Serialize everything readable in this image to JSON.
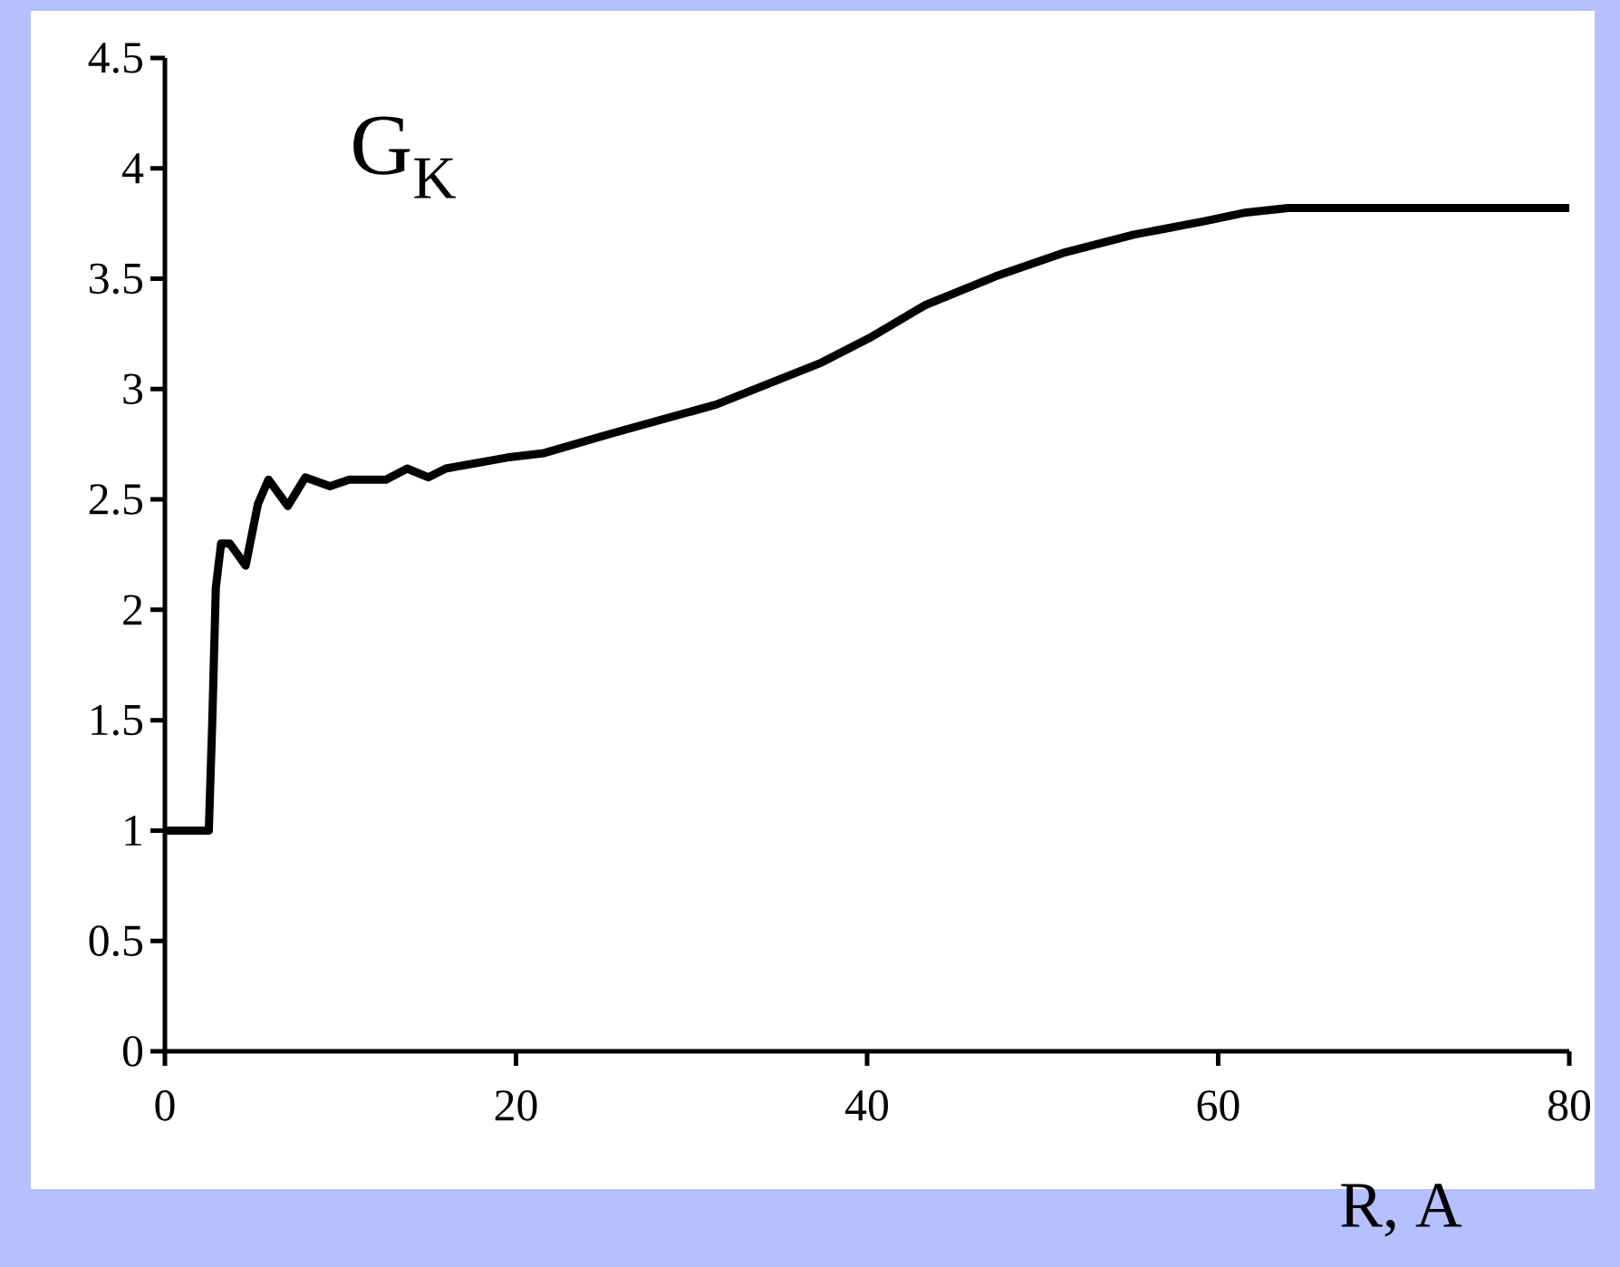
{
  "chart_data": {
    "type": "line",
    "ylabel": "G$_{K}$",
    "xlabel": "R, A",
    "x": [
      0,
      2.5,
      2.7,
      2.9,
      3.2,
      3.7,
      4.6,
      5.3,
      5.9,
      7.0,
      8.0,
      9.4,
      10.5,
      12.6,
      13.8,
      15,
      16,
      19.5,
      21.6,
      25.5,
      31.4,
      37.4,
      40.1,
      43.3,
      47.3,
      51.3,
      55.2,
      59.2,
      61.6,
      64,
      80
    ],
    "values": [
      1,
      1,
      1.5,
      2.1,
      2.3,
      2.3,
      2.2,
      2.48,
      2.59,
      2.47,
      2.6,
      2.56,
      2.59,
      2.59,
      2.64,
      2.6,
      2.64,
      2.69,
      2.71,
      2.8,
      2.93,
      3.12,
      3.23,
      3.38,
      3.51,
      3.62,
      3.7,
      3.76,
      3.8,
      3.82,
      3.82
    ],
    "color": "#000000",
    "xlim": [
      0,
      80
    ],
    "xticks": [
      0,
      20,
      40,
      60,
      80
    ],
    "ylim": [
      0,
      4.5
    ],
    "yticks": [
      0,
      0.5,
      1,
      1.5,
      2,
      2.5,
      3,
      3.5,
      4,
      4.5
    ],
    "grid": false,
    "marker": "none",
    "line_style": "solid"
  }
}
